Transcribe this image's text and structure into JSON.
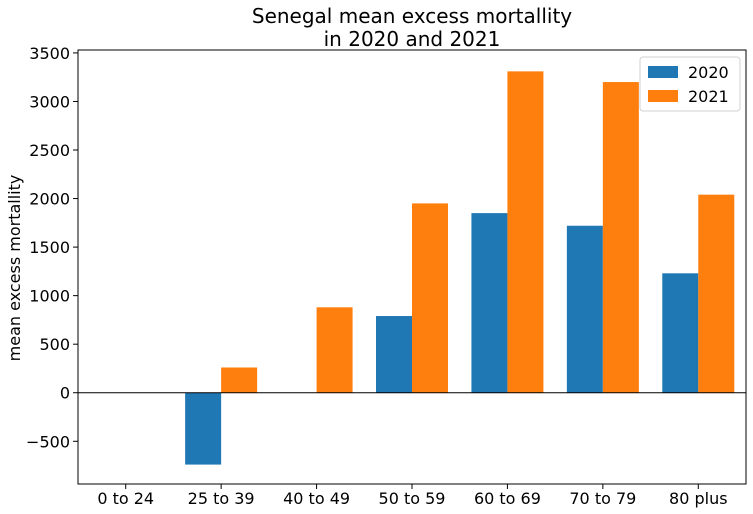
{
  "chart_data": {
    "type": "bar",
    "title_lines": [
      "Senegal mean excess mortallity",
      "in 2020 and 2021"
    ],
    "xlabel": "",
    "ylabel": "mean excess mortallity",
    "categories": [
      "0 to 24",
      "25 to 39",
      "40 to 49",
      "50 to 59",
      "60 to 69",
      "70 to 79",
      "80 plus"
    ],
    "series": [
      {
        "name": "2020",
        "color": "#1f77b4",
        "values": [
          0,
          -740,
          0,
          790,
          1850,
          1720,
          1230
        ]
      },
      {
        "name": "2021",
        "color": "#ff7f0e",
        "values": [
          0,
          260,
          880,
          1950,
          3310,
          3200,
          2040
        ]
      }
    ],
    "ylim": [
      -940,
      3530
    ],
    "yticks": [
      -500,
      0,
      500,
      1000,
      1500,
      2000,
      2500,
      3000,
      3500
    ],
    "ytick_labels": [
      "−500",
      "0",
      "500",
      "1000",
      "1500",
      "2000",
      "2500",
      "3000",
      "3500"
    ],
    "grid": false,
    "legend_position": "top-right",
    "zero_line": true
  }
}
